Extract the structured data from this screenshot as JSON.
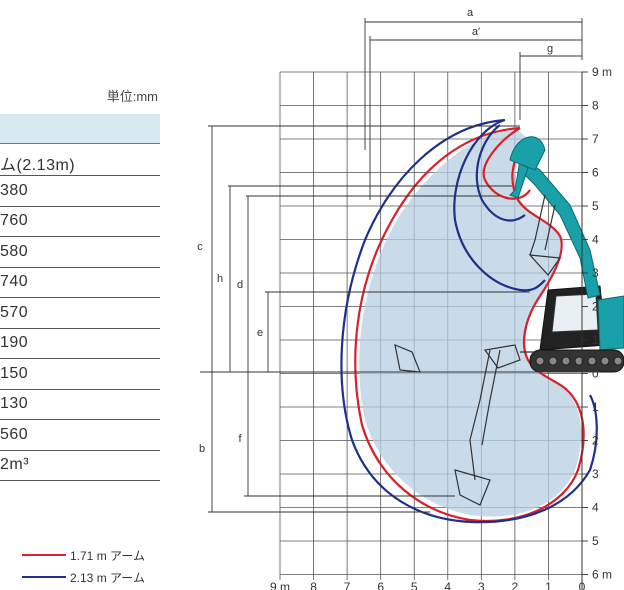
{
  "spec_table": {
    "unit": "単位:mm",
    "rows": [
      "ム(2.13m)",
      "380",
      "760",
      "580",
      "740",
      "570",
      "190",
      "150",
      "130",
      "560",
      "2m³"
    ]
  },
  "legend": [
    {
      "label": "1.71 m アーム",
      "color": "#d9202a"
    },
    {
      "label": "2.13 m アーム",
      "color": "#1f2f8a"
    }
  ],
  "diagram": {
    "dimension_labels": [
      "a",
      "a′",
      "g",
      "c",
      "h",
      "d",
      "e",
      "b",
      "f"
    ],
    "height_ticks": [
      "9 m",
      "8",
      "7",
      "6",
      "5",
      "4",
      "3",
      "2",
      "1",
      "0",
      "1",
      "2",
      "3",
      "4",
      "5",
      "6 m"
    ],
    "reach_ticks": [
      "9 m",
      "8",
      "7",
      "6",
      "5",
      "4",
      "3",
      "2",
      "1",
      "0"
    ],
    "colors": {
      "arm_171": "#d9202a",
      "arm_213": "#1f2f8a",
      "envelope_fill": "#b7cde0",
      "machine": "#1aa0a8"
    }
  }
}
